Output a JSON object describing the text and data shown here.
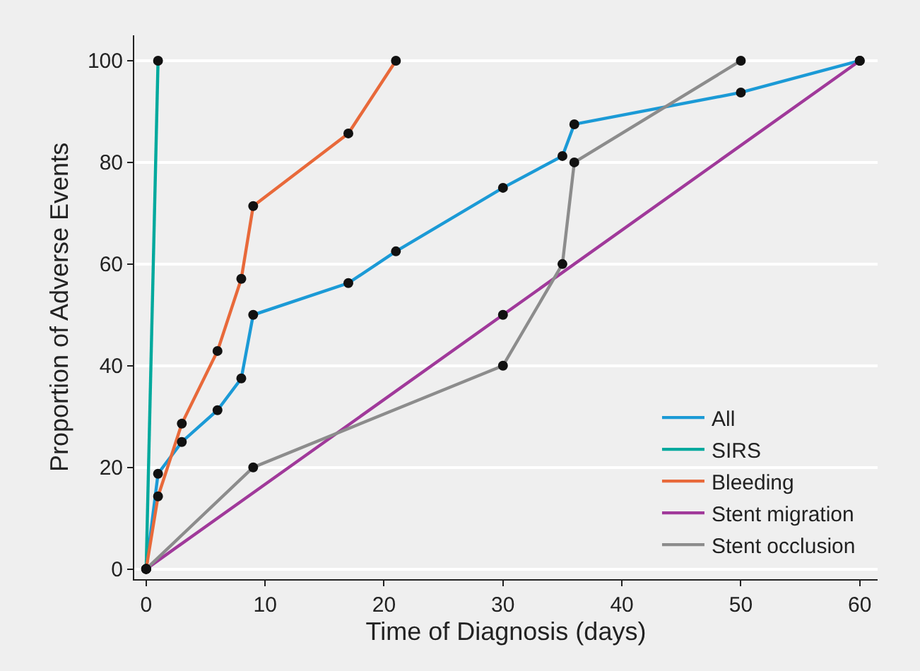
{
  "chart_data": {
    "type": "line",
    "xlabel": "Time of Diagnosis (days)",
    "ylabel": "Proportion of Adverse Events",
    "xlim": [
      -1,
      61.5
    ],
    "ylim": [
      -2,
      105
    ],
    "xticks": [
      0,
      10,
      20,
      30,
      40,
      50,
      60
    ],
    "yticks": [
      0,
      20,
      40,
      60,
      80,
      100
    ],
    "grid": "y",
    "legend": "bottom right",
    "marker": "circle",
    "line_style": "solid",
    "series": [
      {
        "name": "All",
        "color": "#1b9ad6",
        "x": [
          0,
          1,
          3,
          6,
          8,
          9,
          17,
          21,
          30,
          35,
          36,
          50,
          60
        ],
        "values": [
          0,
          18.75,
          25,
          31.25,
          37.5,
          50,
          56.25,
          62.5,
          75,
          81.25,
          87.5,
          93.75,
          100
        ]
      },
      {
        "name": "SIRS",
        "color": "#00a99d",
        "x": [
          0,
          1
        ],
        "values": [
          0,
          100
        ]
      },
      {
        "name": "Bleeding",
        "color": "#e8693a",
        "x": [
          0,
          1,
          3,
          6,
          8,
          9,
          17,
          21
        ],
        "values": [
          0,
          14.3,
          28.6,
          42.9,
          57.1,
          71.4,
          85.7,
          100
        ]
      },
      {
        "name": "Stent migration",
        "color": "#a0399a",
        "x": [
          0,
          30,
          60
        ],
        "values": [
          0,
          50,
          100
        ]
      },
      {
        "name": "Stent occlusion",
        "color": "#8c8c8c",
        "x": [
          0,
          9,
          30,
          35,
          36,
          50
        ],
        "values": [
          0,
          20,
          40,
          60,
          80,
          100
        ]
      }
    ]
  }
}
